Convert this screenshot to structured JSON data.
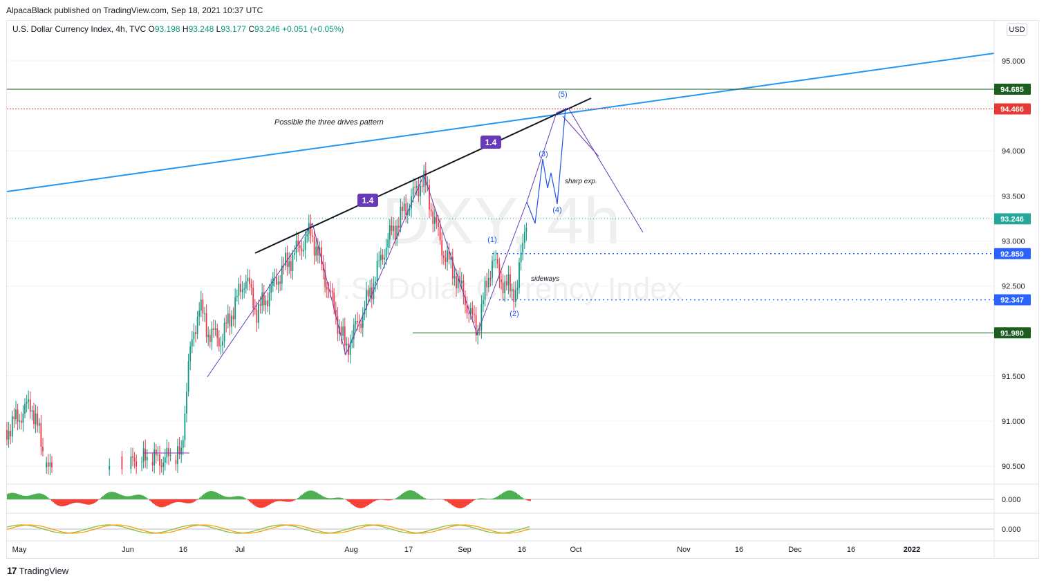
{
  "publisher": "AlpacaBlack published on TradingView.com, Sep 18, 2021 10:37 UTC",
  "symbol": {
    "name": "U.S. Dollar Currency Index, 4h, TVC",
    "o_label": "O",
    "o": "93.198",
    "h_label": "H",
    "h": "93.248",
    "l_label": "L",
    "l": "93.177",
    "c_label": "C",
    "c": "93.246",
    "change": "+0.051 (+0.05%)"
  },
  "currency": "USD",
  "watermark": {
    "ticker": "DXY, 4h",
    "name": "U.S. Dollar Currency Index"
  },
  "brand": "TradingView",
  "colors": {
    "up": "#089981",
    "down": "#f23645",
    "trendline": "#2196f3",
    "pattern": "#673ab7",
    "wave": "#1e53e5",
    "support": "#1b5e20",
    "resistance_red": "#e53935",
    "price_line": "#26a69a",
    "level_blue": "#2962ff"
  },
  "chart_data": {
    "type": "candlestick",
    "title": "U.S. Dollar Currency Index, 4h",
    "x_ticks": [
      "May",
      "Jun",
      "16",
      "Jul",
      "Aug",
      "17",
      "Sep",
      "16",
      "Oct",
      "Nov",
      "16",
      "Dec",
      "16",
      "2022"
    ],
    "y_ticks": [
      "95.000",
      "94.000",
      "93.500",
      "93.000",
      "92.500",
      "91.500",
      "91.000",
      "90.500"
    ],
    "y_range": [
      90.35,
      95.3
    ],
    "price_labels": [
      {
        "value": 94.685,
        "label": "94.685",
        "color": "#1b5e20"
      },
      {
        "value": 94.466,
        "label": "94.466",
        "color": "#e53935"
      },
      {
        "value": 93.246,
        "label": "93.246",
        "color": "#26a69a"
      },
      {
        "value": 92.859,
        "label": "92.859",
        "color": "#2962ff"
      },
      {
        "value": 92.347,
        "label": "92.347",
        "color": "#2962ff"
      },
      {
        "value": 91.98,
        "label": "91.980",
        "color": "#1b5e20"
      }
    ],
    "annotations": {
      "pattern_note": "Possible the three drives pattern",
      "ratio_1": "1.4",
      "ratio_2": "1.4",
      "sharp": "sharp exp.",
      "sideways": "sideways",
      "waves": [
        "(1)",
        "(2)",
        "(3)",
        "(4)",
        "(5)"
      ]
    },
    "indicators": [
      {
        "name": "oscillator-1",
        "zero_label": "0.000"
      },
      {
        "name": "oscillator-2",
        "zero_label": "0.000"
      }
    ]
  }
}
